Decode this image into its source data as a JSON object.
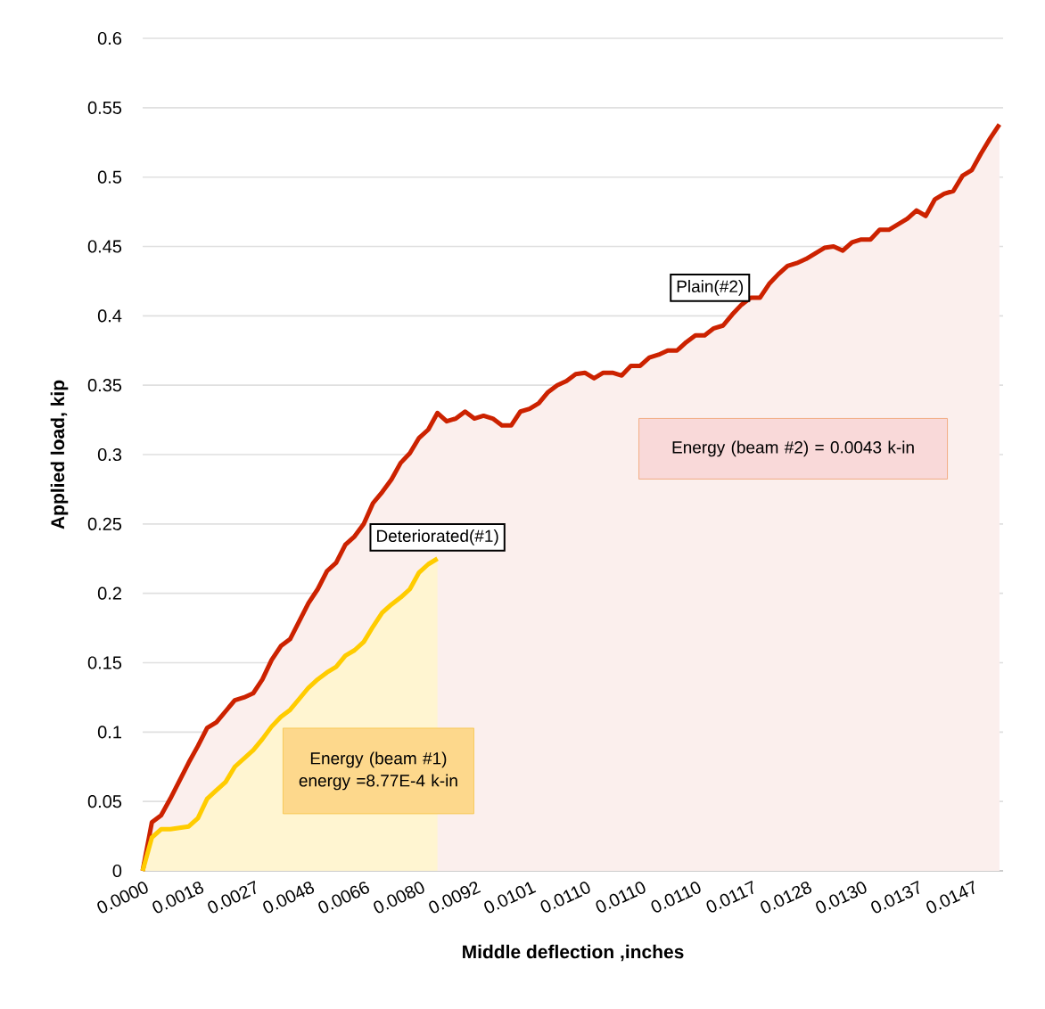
{
  "chart_data": {
    "type": "area",
    "xlabel": "Middle deflection ,inches",
    "ylabel": "Applied load, kip",
    "categories": [
      "0.0000",
      null,
      null,
      null,
      null,
      null,
      "0.0018",
      null,
      null,
      null,
      null,
      null,
      "0.0027",
      null,
      null,
      null,
      null,
      null,
      "0.0048",
      null,
      null,
      null,
      null,
      null,
      "0.0066",
      null,
      null,
      null,
      null,
      null,
      "0.0080",
      null,
      null,
      null,
      null,
      null,
      "0.0092",
      null,
      null,
      null,
      null,
      null,
      "0.0101",
      null,
      null,
      null,
      null,
      null,
      "0.0110",
      null,
      null,
      null,
      null,
      null,
      "0.0110",
      null,
      null,
      null,
      null,
      null,
      "0.0110",
      null,
      null,
      null,
      null,
      null,
      "0.0117",
      null,
      null,
      null,
      null,
      null,
      "0.0128",
      null,
      null,
      null,
      null,
      null,
      "0.0130",
      null,
      null,
      null,
      null,
      null,
      "0.0137",
      null,
      null,
      null,
      null,
      null,
      "0.0147",
      null,
      null,
      null
    ],
    "series": [
      {
        "name": "Plain(#2)",
        "color": "#cc2200",
        "values": [
          0,
          0.035,
          0.04,
          0.052,
          0.065,
          0.078,
          0.09,
          0.103,
          0.107,
          0.115,
          0.123,
          0.125,
          0.128,
          0.138,
          0.152,
          0.162,
          0.167,
          0.18,
          0.193,
          0.203,
          0.216,
          0.222,
          0.235,
          0.241,
          0.25,
          0.265,
          0.273,
          0.282,
          0.294,
          0.301,
          0.312,
          0.318,
          0.33,
          0.324,
          0.326,
          0.331,
          0.326,
          0.328,
          0.326,
          0.321,
          0.321,
          0.331,
          0.333,
          0.337,
          0.345,
          0.35,
          0.353,
          0.358,
          0.359,
          0.355,
          0.359,
          0.359,
          0.357,
          0.364,
          0.364,
          0.37,
          0.372,
          0.375,
          0.375,
          0.381,
          0.386,
          0.386,
          0.391,
          0.393,
          0.401,
          0.408,
          0.413,
          0.413,
          0.423,
          0.43,
          0.436,
          0.438,
          0.441,
          0.445,
          0.449,
          0.45,
          0.447,
          0.453,
          0.455,
          0.455,
          0.462,
          0.462,
          0.466,
          0.47,
          0.476,
          0.472,
          0.484,
          0.488,
          0.49,
          0.501,
          0.505,
          0.517,
          0.528,
          0.538
        ]
      },
      {
        "name": "Deteriorated(#1)",
        "color": "#ffcc00",
        "values": [
          0,
          0.024,
          0.03,
          0.03,
          0.031,
          0.032,
          0.038,
          0.052,
          0.058,
          0.064,
          0.075,
          0.081,
          0.087,
          0.095,
          0.104,
          0.111,
          0.116,
          0.124,
          0.132,
          0.138,
          0.143,
          0.147,
          0.155,
          0.159,
          0.165,
          0.176,
          0.186,
          0.192,
          0.197,
          0.203,
          0.215,
          0.221,
          0.225,
          null,
          null,
          null,
          null,
          null,
          null,
          null,
          null,
          null,
          null,
          null,
          null,
          null,
          null,
          null,
          null,
          null,
          null,
          null,
          null,
          null,
          null,
          null,
          null,
          null,
          null,
          null,
          null,
          null,
          null,
          null,
          null,
          null,
          null,
          null,
          null,
          null,
          null,
          null,
          null,
          null,
          null,
          null,
          null,
          null,
          null,
          null,
          null,
          null,
          null,
          null,
          null,
          null,
          null,
          null,
          null,
          null,
          null,
          null,
          null,
          null
        ]
      }
    ],
    "ylim": [
      0,
      0.6
    ],
    "yticks": [
      0,
      0.05,
      0.1,
      0.15,
      0.2,
      0.25,
      0.3,
      0.35,
      0.4,
      0.45,
      0.5,
      0.55,
      0.6
    ],
    "grid": "y",
    "legend": false,
    "marker": "none",
    "line_style": "solid",
    "annotations": [
      "Energy (beam #2) = 0.0043 k-in",
      "Energy (beam #1) energy =8.77E-4 k-in"
    ]
  }
}
